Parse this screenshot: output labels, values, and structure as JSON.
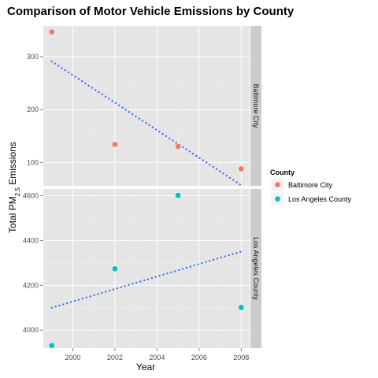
{
  "chart_data": {
    "type": "scatter",
    "title": "Comparison of Motor Vehicle Emissions by County",
    "xlabel": "Year",
    "ylabel": {
      "prefix": "Total PM",
      "sub": "2.5",
      "suffix": " Emissions"
    },
    "x_ticks": [
      2000,
      2002,
      2004,
      2006,
      2008
    ],
    "xlim": [
      1998.6,
      2008.4
    ],
    "legend": {
      "title": "County",
      "position": "right",
      "entries": [
        "Baltimore City",
        "Los Angeles County"
      ]
    },
    "colors": {
      "Baltimore City": "#f8766d",
      "Los Angeles County": "#00bfc4",
      "trend": "#3366ff",
      "panel_bg": "#e5e5e5",
      "strip_bg": "#cccccc"
    },
    "grid": true,
    "panels": [
      {
        "name": "Baltimore City",
        "ylim": [
          56,
          358
        ],
        "y_ticks": [
          100,
          200,
          300
        ],
        "points": [
          {
            "x": 1999,
            "y": 346.8
          },
          {
            "x": 2002,
            "y": 134.3
          },
          {
            "x": 2005,
            "y": 130.4
          },
          {
            "x": 2008,
            "y": 88.3
          }
        ],
        "trend": {
          "x": [
            1999,
            2008
          ],
          "y": [
            291.1,
            57.2
          ]
        }
      },
      {
        "name": "Los Angeles County",
        "ylim": [
          3920,
          4630
        ],
        "y_ticks": [
          4000,
          4200,
          4400,
          4600
        ],
        "points": [
          {
            "x": 1999,
            "y": 3931.1
          },
          {
            "x": 2002,
            "y": 4274.0
          },
          {
            "x": 2005,
            "y": 4601.4
          },
          {
            "x": 2008,
            "y": 4101.3
          }
        ],
        "trend": {
          "x": [
            1999,
            2008
          ],
          "y": [
            4100,
            4351
          ]
        }
      }
    ]
  }
}
